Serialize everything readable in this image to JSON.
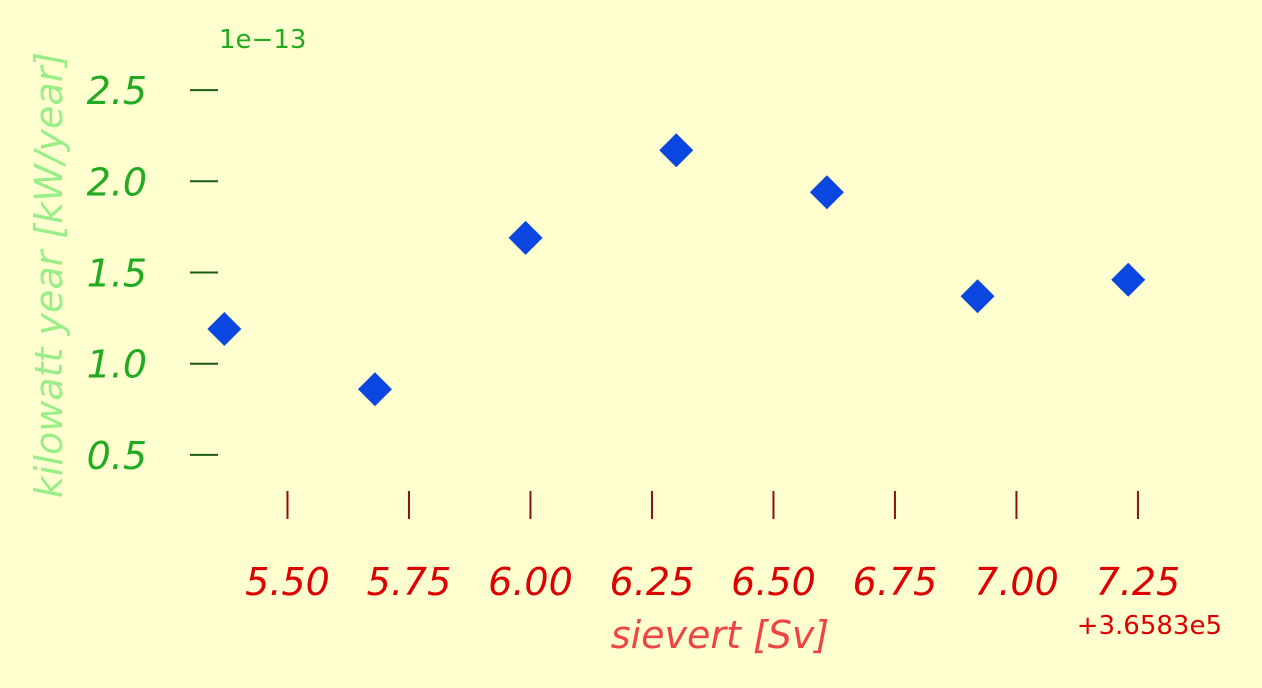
{
  "chart_data": {
    "type": "scatter",
    "background": "#ffffd0",
    "xlabel": "sievert [Sv]",
    "ylabel": "kilowatt year [kW/year]",
    "x_offset_label": "+3.6583e5",
    "y_offset_label": "1e−13",
    "xlim": [
      365835.32,
      365837.46
    ],
    "ylim": [
      0.28,
      2.72
    ],
    "x_ticks": [
      365835.5,
      365835.75,
      365836.0,
      365836.25,
      365836.5,
      365836.75,
      365837.0,
      365837.25
    ],
    "x_tick_labels": [
      "5.50",
      "5.75",
      "6.00",
      "6.25",
      "6.50",
      "6.75",
      "7.00",
      "7.25"
    ],
    "y_ticks": [
      0.5,
      1.0,
      1.5,
      2.0,
      2.5
    ],
    "y_tick_labels": [
      "0.5",
      "1.0",
      "1.5",
      "2.0",
      "2.5"
    ],
    "marker": "diamond",
    "marker_color": "#0b46e0",
    "y_tick_color": "#22aa22",
    "x_tick_color": "#dd0000",
    "ylabel_color": "#99ee88",
    "xlabel_color": "#ee4444",
    "grid": false,
    "series": [
      {
        "x": [
          365835.37,
          365835.68,
          365835.99,
          365836.3,
          365836.61,
          365836.92,
          365837.23
        ],
        "y": [
          1.19,
          0.86,
          1.69,
          2.17,
          1.94,
          1.37,
          1.46
        ]
      }
    ]
  }
}
